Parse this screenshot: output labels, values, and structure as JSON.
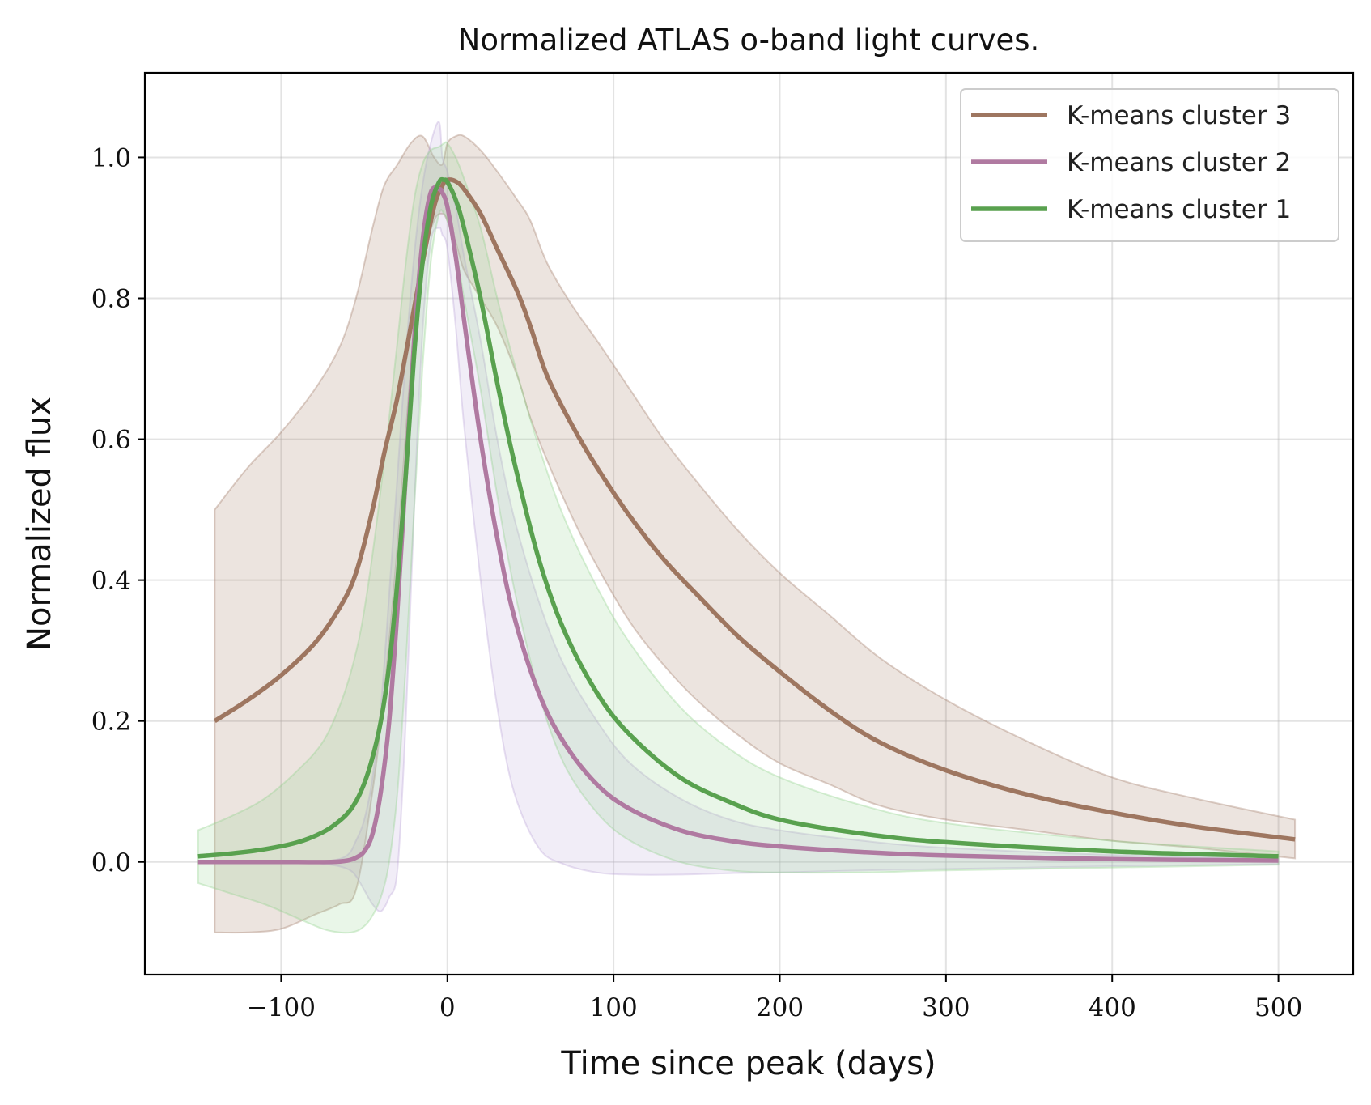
{
  "chart_data": {
    "type": "line",
    "title": "Normalized ATLAS o-band light curves.",
    "xlabel": "Time since peak (days)",
    "ylabel": "Normalized flux",
    "xlim": [
      -182,
      545
    ],
    "ylim": [
      -0.16,
      1.12
    ],
    "xticks": [
      -100,
      0,
      100,
      200,
      300,
      400,
      500
    ],
    "xtick_labels": [
      "−100",
      "0",
      "100",
      "200",
      "300",
      "400",
      "500"
    ],
    "yticks": [
      0.0,
      0.2,
      0.4,
      0.6,
      0.8,
      1.0
    ],
    "ytick_labels": [
      "0.0",
      "0.2",
      "0.4",
      "0.6",
      "0.8",
      "1.0"
    ],
    "grid": true,
    "legend_position": "top-right",
    "series": [
      {
        "name": "K-means cluster 3",
        "color": "#9e7660",
        "band_color": "#9e7660",
        "x": [
          -140,
          -120,
          -100,
          -80,
          -65,
          -55,
          -45,
          -38,
          -30,
          -22,
          -15,
          -8,
          -3,
          0,
          5,
          10,
          20,
          30,
          42,
          50,
          60,
          75,
          90,
          110,
          130,
          150,
          175,
          200,
          230,
          260,
          300,
          350,
          400,
          450,
          510
        ],
        "y": [
          0.2,
          0.23,
          0.265,
          0.31,
          0.36,
          0.41,
          0.5,
          0.58,
          0.66,
          0.76,
          0.85,
          0.93,
          0.96,
          0.968,
          0.966,
          0.955,
          0.92,
          0.87,
          0.81,
          0.76,
          0.69,
          0.62,
          0.56,
          0.49,
          0.43,
          0.38,
          0.32,
          0.27,
          0.215,
          0.17,
          0.13,
          0.095,
          0.07,
          0.05,
          0.032
        ],
        "band": {
          "x": [
            -140,
            -120,
            -100,
            -80,
            -65,
            -55,
            -45,
            -38,
            -30,
            -22,
            -15,
            -8,
            -3,
            0,
            5,
            10,
            20,
            30,
            42,
            50,
            60,
            75,
            90,
            110,
            130,
            150,
            175,
            200,
            230,
            260,
            300,
            350,
            400,
            450,
            510
          ],
          "upper": [
            0.5,
            0.56,
            0.61,
            0.67,
            0.73,
            0.8,
            0.9,
            0.96,
            0.99,
            1.02,
            1.03,
            1.0,
            0.99,
            1.02,
            1.03,
            1.03,
            1.01,
            0.98,
            0.94,
            0.91,
            0.85,
            0.79,
            0.74,
            0.67,
            0.6,
            0.54,
            0.47,
            0.41,
            0.35,
            0.29,
            0.23,
            0.17,
            0.12,
            0.09,
            0.06
          ],
          "lower": [
            -0.1,
            -0.1,
            -0.095,
            -0.075,
            -0.06,
            -0.04,
            0.1,
            0.24,
            0.45,
            0.7,
            0.85,
            0.91,
            0.92,
            0.91,
            0.88,
            0.84,
            0.8,
            0.76,
            0.69,
            0.63,
            0.57,
            0.49,
            0.42,
            0.34,
            0.28,
            0.23,
            0.18,
            0.14,
            0.11,
            0.08,
            0.06,
            0.045,
            0.03,
            0.02,
            0.005
          ]
        }
      },
      {
        "name": "K-means cluster 2",
        "color": "#b07aa1",
        "band_color": "#b9a3d8",
        "x": [
          -150,
          -120,
          -90,
          -70,
          -60,
          -55,
          -50,
          -45,
          -40,
          -35,
          -30,
          -25,
          -20,
          -15,
          -10,
          -5,
          -3,
          0,
          5,
          10,
          20,
          30,
          40,
          55,
          70,
          90,
          110,
          140,
          170,
          200,
          250,
          300,
          400,
          500
        ],
        "y": [
          0.0,
          0.0,
          0.0,
          0.0,
          0.002,
          0.006,
          0.015,
          0.04,
          0.1,
          0.2,
          0.36,
          0.55,
          0.74,
          0.88,
          0.95,
          0.955,
          0.95,
          0.93,
          0.86,
          0.77,
          0.6,
          0.46,
          0.35,
          0.24,
          0.17,
          0.11,
          0.075,
          0.045,
          0.03,
          0.022,
          0.014,
          0.009,
          0.004,
          0.002
        ],
        "band": {
          "x": [
            -150,
            -120,
            -90,
            -70,
            -60,
            -55,
            -50,
            -45,
            -40,
            -35,
            -30,
            -25,
            -20,
            -15,
            -10,
            -5,
            -3,
            0,
            5,
            10,
            20,
            30,
            40,
            55,
            70,
            90,
            110,
            140,
            170,
            200,
            250,
            300,
            400,
            500
          ],
          "upper": [
            0.0,
            0.0,
            0.0,
            0.002,
            0.01,
            0.03,
            0.06,
            0.12,
            0.22,
            0.38,
            0.55,
            0.72,
            0.86,
            0.96,
            1.02,
            1.05,
            1.0,
            0.98,
            0.93,
            0.86,
            0.74,
            0.6,
            0.49,
            0.37,
            0.28,
            0.2,
            0.14,
            0.09,
            0.06,
            0.045,
            0.03,
            0.02,
            0.01,
            0.005
          ],
          "lower": [
            0.0,
            0.0,
            0.0,
            -0.004,
            -0.01,
            -0.02,
            -0.04,
            -0.06,
            -0.07,
            -0.05,
            -0.01,
            0.2,
            0.5,
            0.75,
            0.88,
            0.9,
            0.89,
            0.87,
            0.76,
            0.62,
            0.4,
            0.22,
            0.1,
            0.02,
            -0.003,
            -0.015,
            -0.018,
            -0.018,
            -0.016,
            -0.015,
            -0.012,
            -0.01,
            -0.006,
            -0.003
          ]
        }
      },
      {
        "name": "K-means cluster 1",
        "color": "#59a14f",
        "band_color": "#8fd18a",
        "x": [
          -150,
          -130,
          -110,
          -90,
          -75,
          -65,
          -58,
          -52,
          -46,
          -40,
          -35,
          -30,
          -25,
          -20,
          -15,
          -10,
          -5,
          -2,
          0,
          5,
          10,
          20,
          30,
          40,
          55,
          70,
          90,
          110,
          140,
          170,
          200,
          250,
          300,
          400,
          500
        ],
        "y": [
          0.008,
          0.012,
          0.018,
          0.028,
          0.042,
          0.058,
          0.075,
          0.1,
          0.14,
          0.2,
          0.28,
          0.4,
          0.55,
          0.72,
          0.85,
          0.93,
          0.965,
          0.968,
          0.965,
          0.94,
          0.9,
          0.8,
          0.68,
          0.57,
          0.43,
          0.33,
          0.24,
          0.18,
          0.12,
          0.085,
          0.06,
          0.04,
          0.028,
          0.015,
          0.008
        ],
        "band": {
          "x": [
            -150,
            -130,
            -110,
            -90,
            -75,
            -65,
            -58,
            -52,
            -46,
            -40,
            -35,
            -30,
            -25,
            -20,
            -15,
            -10,
            -5,
            -2,
            0,
            5,
            10,
            20,
            30,
            40,
            55,
            70,
            90,
            110,
            140,
            170,
            200,
            250,
            300,
            400,
            500
          ],
          "upper": [
            0.045,
            0.065,
            0.09,
            0.13,
            0.17,
            0.22,
            0.27,
            0.33,
            0.42,
            0.53,
            0.63,
            0.74,
            0.85,
            0.94,
            0.99,
            1.01,
            1.015,
            1.02,
            1.02,
            1.0,
            0.97,
            0.9,
            0.8,
            0.71,
            0.59,
            0.49,
            0.39,
            0.31,
            0.22,
            0.16,
            0.12,
            0.08,
            0.055,
            0.03,
            0.015
          ],
          "lower": [
            -0.03,
            -0.045,
            -0.06,
            -0.08,
            -0.095,
            -0.1,
            -0.1,
            -0.095,
            -0.08,
            -0.05,
            0.0,
            0.1,
            0.28,
            0.5,
            0.7,
            0.85,
            0.92,
            0.92,
            0.91,
            0.87,
            0.8,
            0.67,
            0.52,
            0.39,
            0.24,
            0.14,
            0.07,
            0.03,
            0.0,
            -0.012,
            -0.015,
            -0.015,
            -0.012,
            -0.008,
            -0.004
          ]
        }
      }
    ]
  }
}
